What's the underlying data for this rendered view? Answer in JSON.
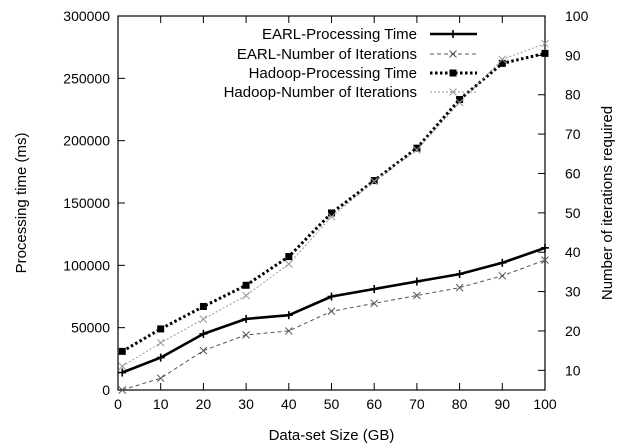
{
  "chart_data": {
    "type": "line",
    "xlabel": "Data-set Size (GB)",
    "ylabel": "Processing time (ms)",
    "y2label": "Number of iterations required",
    "x_ticks": [
      0,
      10,
      20,
      30,
      40,
      50,
      60,
      70,
      80,
      90,
      100
    ],
    "y_ticks": [
      0,
      50000,
      100000,
      150000,
      200000,
      250000,
      300000
    ],
    "y2_ticks": [
      10,
      20,
      30,
      40,
      50,
      60,
      70,
      80,
      90,
      100
    ],
    "xlim": [
      0,
      100
    ],
    "ylim": [
      0,
      300000
    ],
    "y2lim": [
      5,
      100
    ],
    "grid": false,
    "legend_position": "top-right",
    "series": [
      {
        "name": "EARL-Processing Time",
        "axis": "left",
        "style": "solid-thick",
        "marker": "plus",
        "color": "#000000",
        "x": [
          1,
          10,
          20,
          30,
          40,
          50,
          60,
          70,
          80,
          90,
          100
        ],
        "y": [
          14000,
          26000,
          45000,
          57000,
          60000,
          75000,
          81000,
          87000,
          93000,
          102000,
          114000
        ]
      },
      {
        "name": "EARL-Number of Iterations",
        "axis": "right",
        "style": "dashed-thin",
        "marker": "x",
        "color": "#555555",
        "x": [
          1,
          10,
          20,
          30,
          40,
          50,
          60,
          70,
          80,
          90,
          100
        ],
        "y": [
          5,
          8,
          15,
          19,
          20,
          25,
          27,
          29,
          31,
          34,
          38
        ]
      },
      {
        "name": "Hadoop-Processing Time",
        "axis": "left",
        "style": "dotted-thick",
        "marker": "square",
        "color": "#000000",
        "x": [
          1,
          10,
          20,
          30,
          40,
          50,
          60,
          70,
          80,
          90,
          100
        ],
        "y": [
          31000,
          49000,
          67000,
          84000,
          107000,
          142000,
          168000,
          194000,
          233000,
          262000,
          270000
        ]
      },
      {
        "name": "Hadoop-Number of Iterations",
        "axis": "right",
        "style": "dotted-thin",
        "marker": "x",
        "color": "#999999",
        "x": [
          1,
          10,
          20,
          30,
          40,
          50,
          60,
          70,
          80,
          90,
          100
        ],
        "y": [
          11,
          17,
          23,
          29,
          37,
          49,
          58,
          66,
          78,
          89,
          93
        ]
      }
    ]
  }
}
